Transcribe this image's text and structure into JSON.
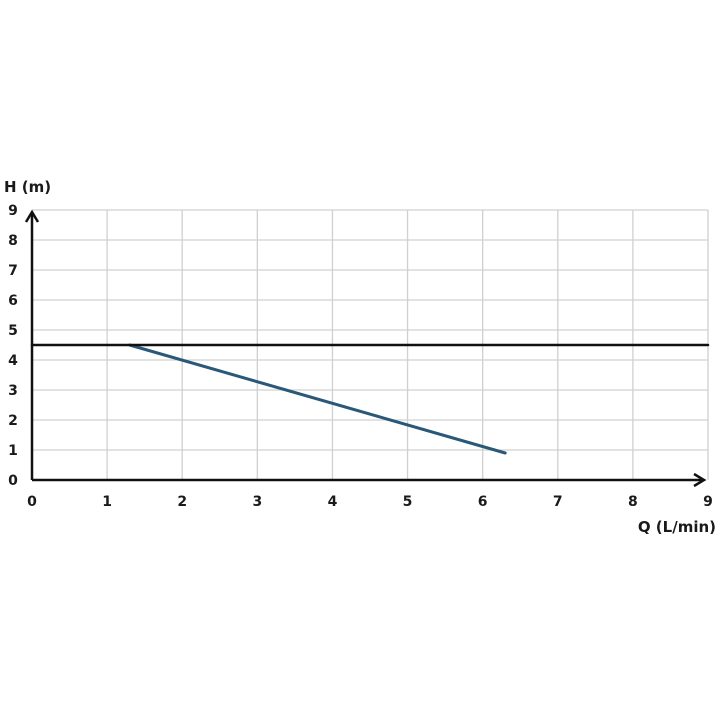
{
  "chart_data": {
    "type": "line",
    "title": "",
    "xlabel": "Q (L/min)",
    "ylabel": "H (m)",
    "xlim": [
      0,
      9
    ],
    "ylim": [
      0,
      9
    ],
    "xticks": [
      "0",
      "1",
      "2",
      "3",
      "4",
      "5",
      "6",
      "7",
      "8",
      "9"
    ],
    "yticks": [
      "0",
      "1",
      "2",
      "3",
      "4",
      "5",
      "6",
      "7",
      "8",
      "9"
    ],
    "grid": true,
    "series": [
      {
        "x": [
          1.3,
          6.3
        ],
        "y": [
          4.5,
          0.9
        ],
        "color": "#2a5878"
      },
      {
        "x": [
          0,
          9
        ],
        "y": [
          4.5,
          4.5
        ],
        "color": "#111111"
      }
    ],
    "colors": {
      "grid": "#d0d0d0",
      "axis": "#111111"
    }
  }
}
